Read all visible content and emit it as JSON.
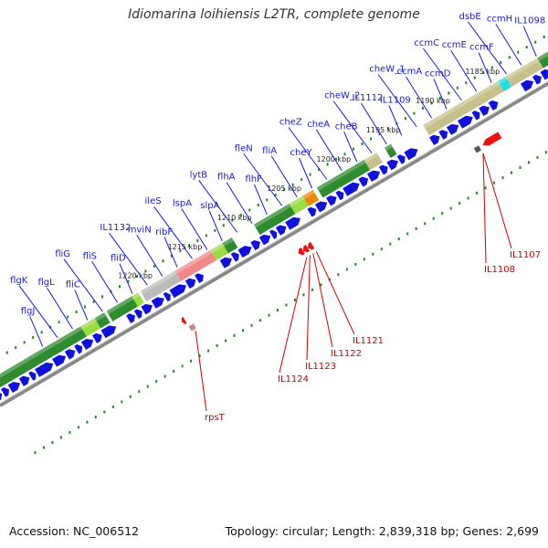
{
  "title": "Idiomarina loihiensis L2TR, complete genome",
  "footer": {
    "accession": "Accession: NC_006512",
    "topology": "Topology: circular; Length: 2,839,318 bp; Genes: 2,699"
  },
  "kbp_marks": [
    {
      "label": "1185 kbp",
      "kbp": 1185
    },
    {
      "label": "1190 kbp",
      "kbp": 1190
    },
    {
      "label": "1195 kbp",
      "kbp": 1195
    },
    {
      "label": "1200 kbp",
      "kbp": 1200
    },
    {
      "label": "1205 kbp",
      "kbp": 1205
    },
    {
      "label": "1210 kbp",
      "kbp": 1210
    },
    {
      "label": "1215 kbp",
      "kbp": 1215
    },
    {
      "label": "1220 kbp",
      "kbp": 1220
    }
  ],
  "genes_plus": [
    {
      "name": "IL1098"
    },
    {
      "name": "ccmH"
    },
    {
      "name": "dsbE"
    },
    {
      "name": "ccmF"
    },
    {
      "name": "ccmE"
    },
    {
      "name": "ccmC"
    },
    {
      "name": "ccmD"
    },
    {
      "name": "ccmA"
    },
    {
      "name": "cheW_1"
    },
    {
      "name": "IL1109"
    },
    {
      "name": "IL1112"
    },
    {
      "name": "cheW_2"
    },
    {
      "name": "cheB"
    },
    {
      "name": "cheA"
    },
    {
      "name": "cheZ"
    },
    {
      "name": "cheY"
    },
    {
      "name": "fliA"
    },
    {
      "name": "fleN"
    },
    {
      "name": "flhF"
    },
    {
      "name": "flhA"
    },
    {
      "name": "lytB"
    },
    {
      "name": "slpA"
    },
    {
      "name": "lspA"
    },
    {
      "name": "ileS"
    },
    {
      "name": "ribF"
    },
    {
      "name": "mviN"
    },
    {
      "name": "IL1132"
    },
    {
      "name": "fliD"
    },
    {
      "name": "fliS"
    },
    {
      "name": "fliG"
    },
    {
      "name": "fliC"
    },
    {
      "name": "flgL"
    },
    {
      "name": "flgK"
    },
    {
      "name": "flgJ"
    }
  ],
  "genes_minus": [
    {
      "name": "IL1107"
    },
    {
      "name": "IL1108"
    },
    {
      "name": "IL1121"
    },
    {
      "name": "IL1122"
    },
    {
      "name": "IL1123"
    },
    {
      "name": "IL1124"
    },
    {
      "name": "rpsT"
    }
  ],
  "colors": {
    "plus_label": "#1a1acc",
    "minus_label": "#cc0000",
    "gene_arrow": "#1111dd",
    "dark_green": "#2e8b2e",
    "light_green": "#99dd44",
    "tan": "#c8c08a",
    "pink": "#ee8888",
    "gray": "#bbbbbb",
    "orange": "#ee8800",
    "cyan": "#22dddd",
    "backbone": "#888888"
  }
}
